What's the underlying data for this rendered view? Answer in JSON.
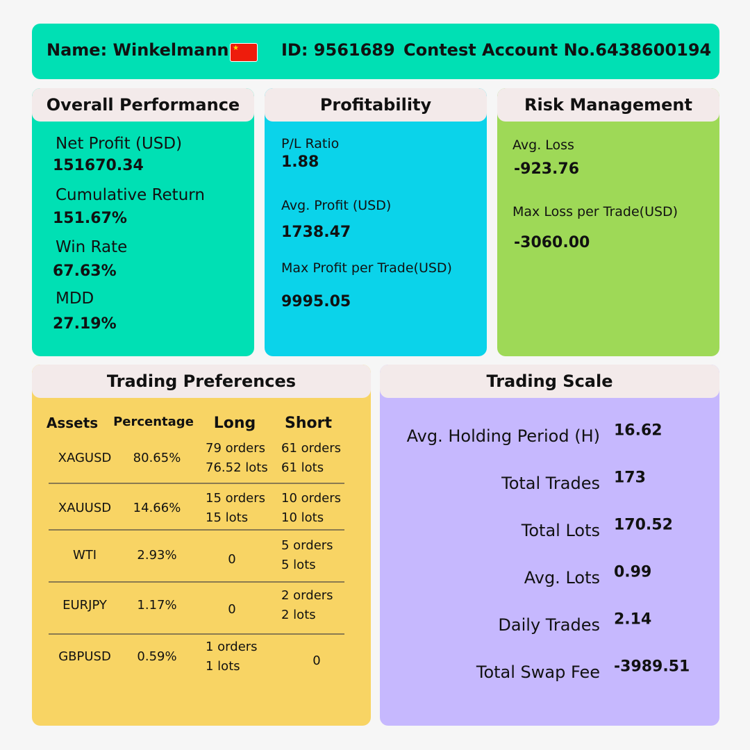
{
  "header": {
    "name": "Name: Winkelmann",
    "flag": "china-flag-icon",
    "id": "ID: 9561689",
    "account": "Contest Account No.6438600194"
  },
  "colors": {
    "header": "#00e0b4",
    "overall": "#00e0b4",
    "profitability": "#0bd3ea",
    "risk": "#9ed957",
    "preferences": "#f8d464",
    "scale": "#c6b8fe",
    "tab": "#f3eaea"
  },
  "overall": {
    "title": "Overall Performance",
    "items": [
      {
        "label": "Net Profit (USD)",
        "value": "151670.34"
      },
      {
        "label": "Cumulative Return",
        "value": "151.67%"
      },
      {
        "label": "Win Rate",
        "value": "67.63%"
      },
      {
        "label": "MDD",
        "value": "27.19%"
      }
    ]
  },
  "profitability": {
    "title": "Profitability",
    "items": [
      {
        "label": "P/L Ratio",
        "value": "1.88"
      },
      {
        "label": "Avg. Profit (USD)",
        "value": "1738.47"
      },
      {
        "label": "Max Profit per Trade(USD)",
        "value": "9995.05"
      }
    ]
  },
  "risk": {
    "title": "Risk Management",
    "items": [
      {
        "label": "Avg. Loss",
        "value": "-923.76"
      },
      {
        "label": "Max Loss per Trade(USD)",
        "value": "-3060.00"
      }
    ]
  },
  "preferences": {
    "title": "Trading Preferences",
    "columns": [
      "Assets",
      "Percentage",
      "Long",
      "Short"
    ],
    "rows": [
      {
        "asset": "XAGUSD",
        "pct": "80.65%",
        "long": [
          "79 orders",
          "76.52 lots"
        ],
        "short": [
          "61 orders",
          "61 lots"
        ]
      },
      {
        "asset": "XAUUSD",
        "pct": "14.66%",
        "long": [
          "15 orders",
          "15 lots"
        ],
        "short": [
          "10 orders",
          "10 lots"
        ]
      },
      {
        "asset": "WTI",
        "pct": "2.93%",
        "long": [
          "0"
        ],
        "short": [
          "5 orders",
          "5 lots"
        ]
      },
      {
        "asset": "EURJPY",
        "pct": "1.17%",
        "long": [
          "0"
        ],
        "short": [
          "2 orders",
          "2 lots"
        ]
      },
      {
        "asset": "GBPUSD",
        "pct": "0.59%",
        "long": [
          "1 orders",
          "1 lots"
        ],
        "short": [
          "0"
        ]
      }
    ]
  },
  "scale": {
    "title": "Trading Scale",
    "items": [
      {
        "label": "Avg. Holding Period (H)",
        "value": "16.62"
      },
      {
        "label": "Total Trades",
        "value": "173"
      },
      {
        "label": "Total Lots",
        "value": "170.52"
      },
      {
        "label": "Avg. Lots",
        "value": "0.99"
      },
      {
        "label": "Daily Trades",
        "value": "2.14"
      },
      {
        "label": "Total Swap Fee",
        "value": "-3989.51"
      }
    ]
  }
}
